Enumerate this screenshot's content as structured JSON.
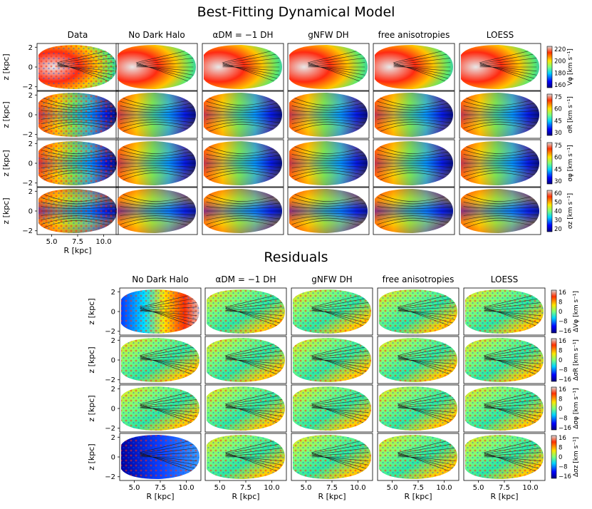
{
  "titles": {
    "model": "Best-Fitting Dynamical Model",
    "residuals": "Residuals"
  },
  "model_columns": [
    "Data",
    "No Dark Halo",
    "αDM = −1 DH",
    "gNFW DH",
    "free anisotropies",
    "LOESS"
  ],
  "residual_columns": [
    "No Dark Halo",
    "αDM = −1 DH",
    "gNFW DH",
    "free anisotropies",
    "LOESS"
  ],
  "axes": {
    "ylabel": "z [kpc]",
    "xlabel": "R [kpc]",
    "yticks": [
      "2",
      "0",
      "−2"
    ],
    "xticks": [
      "5.0",
      "7.5",
      "10.0"
    ]
  },
  "model_colorbars": [
    {
      "label": "Vφ [km s⁻¹]",
      "ticks": [
        "220",
        "200",
        "180",
        "160"
      ]
    },
    {
      "label": "σR [km s⁻¹]",
      "ticks": [
        "75",
        "60",
        "45",
        "30"
      ]
    },
    {
      "label": "σφ [km s⁻¹]",
      "ticks": [
        "75",
        "60",
        "45",
        "30"
      ]
    },
    {
      "label": "σz [km s⁻¹]",
      "ticks": [
        "60",
        "50",
        "40",
        "30",
        "20"
      ]
    }
  ],
  "residual_colorbars": [
    {
      "label": "ΔVφ [km s⁻¹]",
      "ticks": [
        "16",
        "8",
        "0",
        "−8",
        "−16"
      ]
    },
    {
      "label": "ΔσR [km s⁻¹]",
      "ticks": [
        "16",
        "8",
        "0",
        "−8",
        "−16"
      ]
    },
    {
      "label": "Δσφ [km s⁻¹]",
      "ticks": [
        "16",
        "8",
        "0",
        "−8",
        "−16"
      ]
    },
    {
      "label": "Δσz [km s⁻¹]",
      "ticks": [
        "16",
        "8",
        "0",
        "−8",
        "−16"
      ]
    }
  ],
  "chart_data": [
    {
      "type": "heatmap",
      "title": "Best-Fitting Dynamical Model",
      "columns": [
        "Data",
        "No Dark Halo",
        "αDM = −1 DH",
        "gNFW DH",
        "free anisotropies",
        "LOESS"
      ],
      "rows": [
        "Vφ",
        "σR",
        "σφ",
        "σz"
      ],
      "xlabel": "R [kpc]",
      "ylabel": "z [kpc]",
      "xlim": [
        3.5,
        12.5
      ],
      "ylim": [
        -2.6,
        2.6
      ],
      "colorbar_ranges": [
        [
          155,
          225
        ],
        [
          30,
          80
        ],
        [
          30,
          80
        ],
        [
          18,
          62
        ]
      ]
    },
    {
      "type": "heatmap",
      "title": "Residuals",
      "columns": [
        "No Dark Halo",
        "αDM = −1 DH",
        "gNFW DH",
        "free anisotropies",
        "LOESS"
      ],
      "rows": [
        "ΔVφ",
        "ΔσR",
        "Δσφ",
        "Δσz"
      ],
      "xlabel": "R [kpc]",
      "ylabel": "z [kpc]",
      "xlim": [
        3.5,
        12.5
      ],
      "ylim": [
        -2.6,
        2.6
      ],
      "colorbar_range": [
        -16,
        16
      ]
    }
  ]
}
